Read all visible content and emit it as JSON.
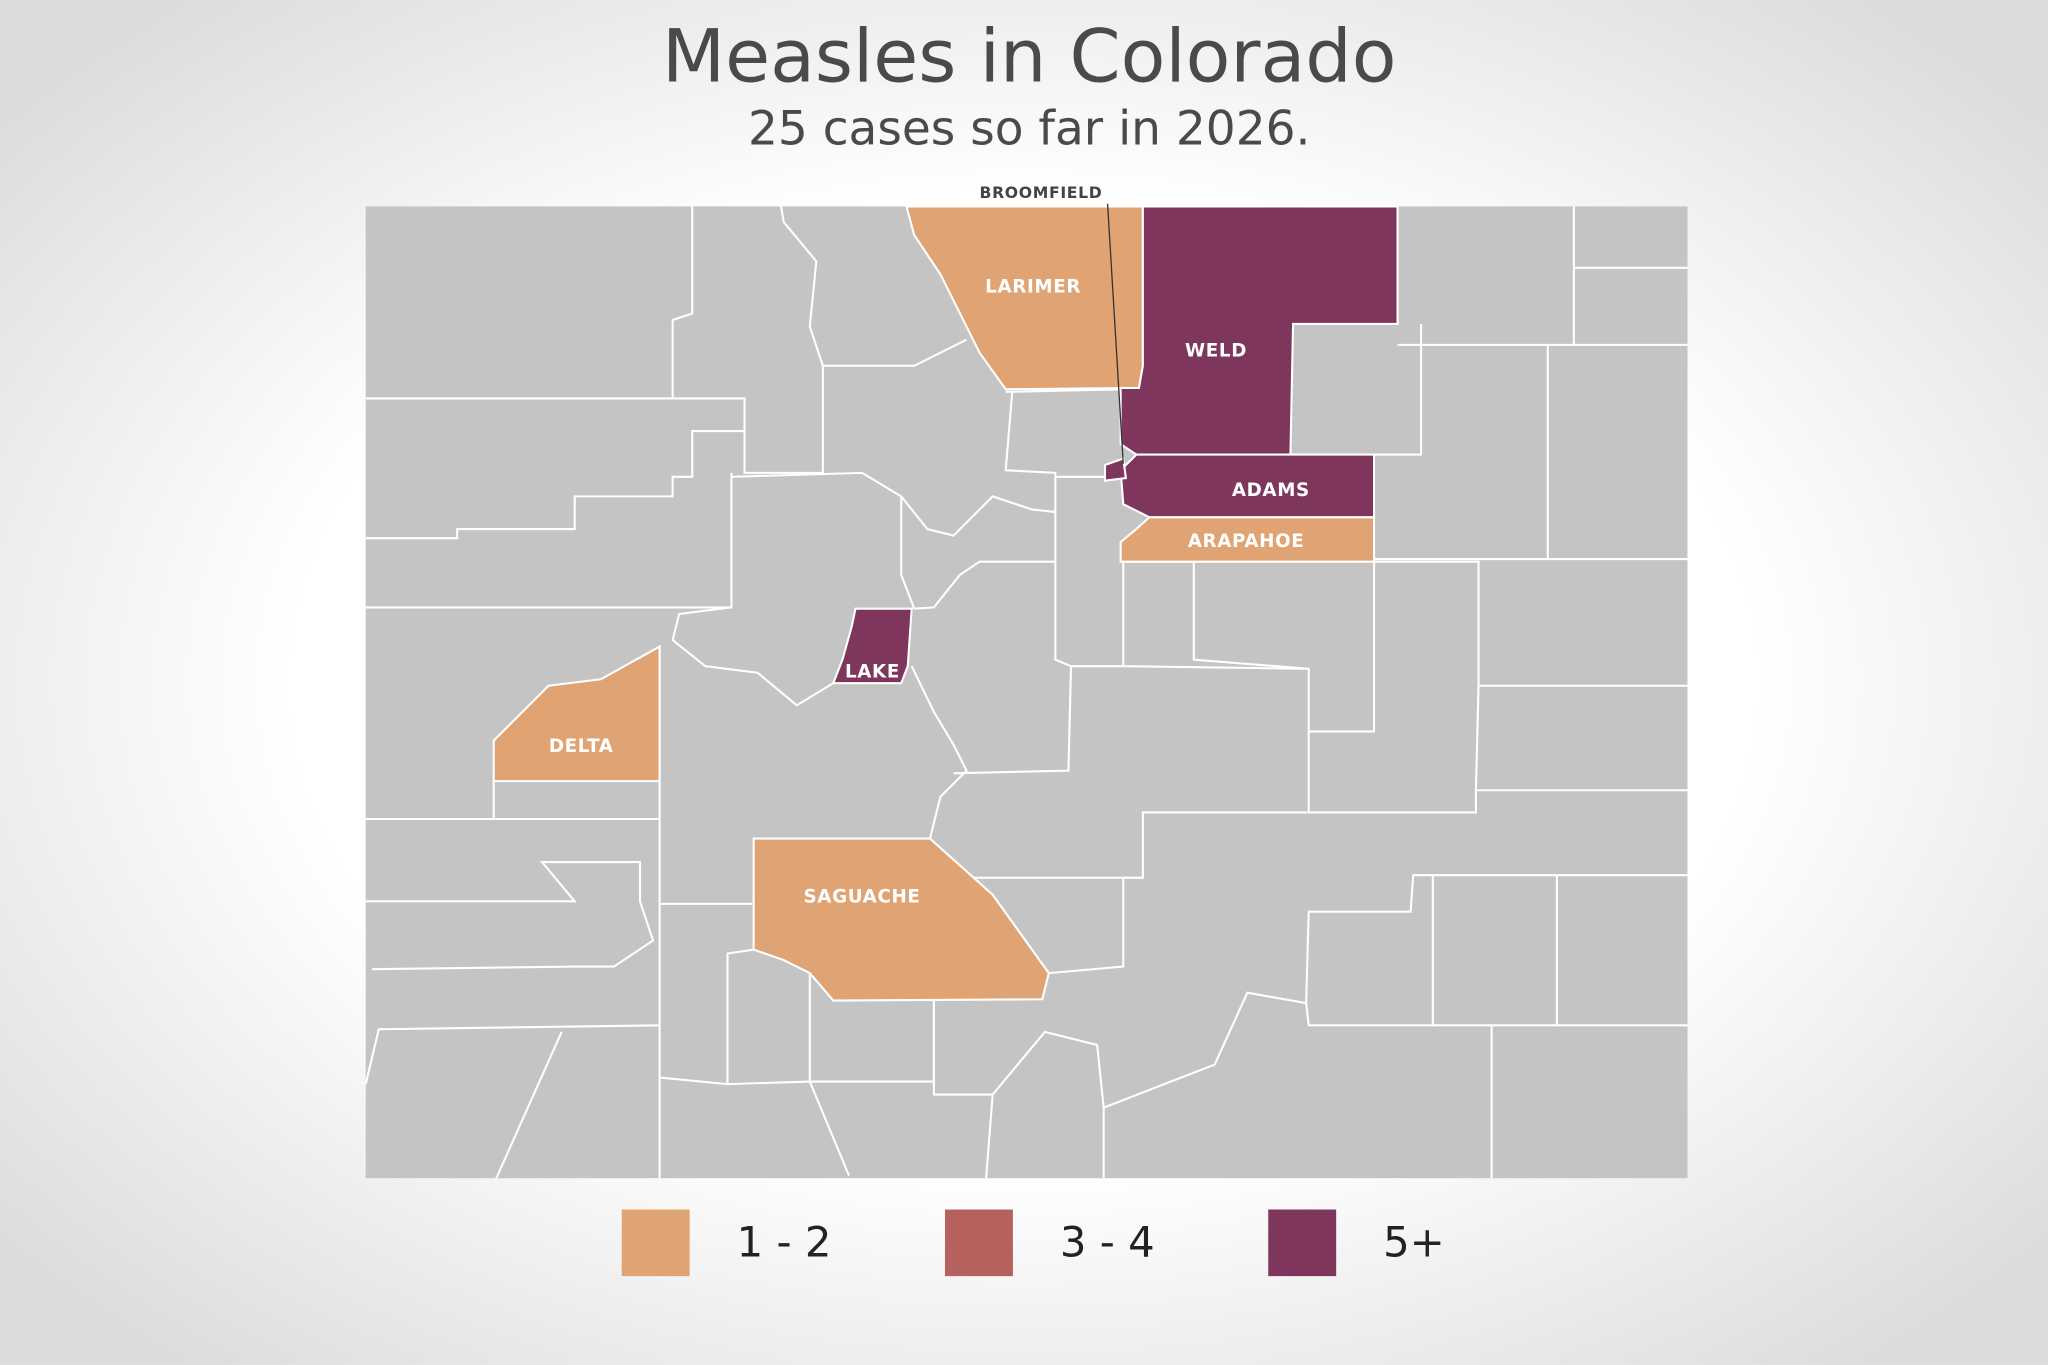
{
  "title": "Measles in Colorado",
  "subtitle": "25 cases so far in 2026.",
  "counties": [
    {
      "label": "LARIMER",
      "color": "#e0a373"
    },
    {
      "label": "WELD",
      "color": "#7e365c"
    },
    {
      "label": "ADAMS",
      "color": "#7e365c"
    },
    {
      "label": "ARAPAHOE",
      "color": "#e0a373"
    },
    {
      "label": "BROOMFIELD",
      "color": "#7e365c"
    },
    {
      "label": "LAKE",
      "color": "#7e365c"
    },
    {
      "label": "DELTA",
      "color": "#e0a373"
    },
    {
      "label": "SAGUACHE",
      "color": "#e0a373"
    }
  ],
  "legend": [
    {
      "label": "1 - 2",
      "color": "#e0a373"
    },
    {
      "label": "3 - 4",
      "color": "#b5625f"
    },
    {
      "label": "5+",
      "color": "#7e365c"
    }
  ]
}
